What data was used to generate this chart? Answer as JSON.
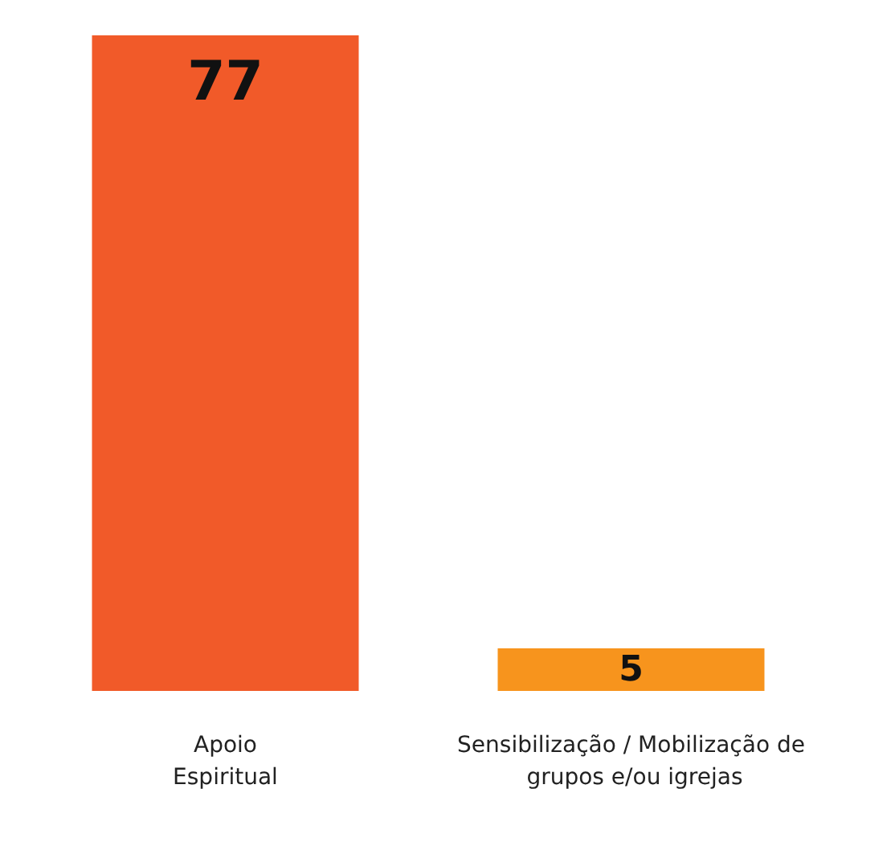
{
  "chart_data": {
    "type": "bar",
    "categories": [
      "Apoio Espiritual",
      "Sensibilização / Mobilização de grupos e/ou igrejas"
    ],
    "values": [
      77,
      5
    ],
    "colors": [
      "#f15a29",
      "#f7941d"
    ],
    "data_labels": true
  }
}
